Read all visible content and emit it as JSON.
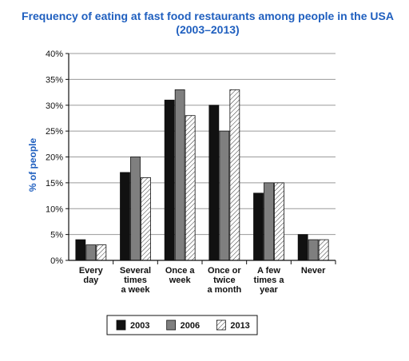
{
  "chart_data": {
    "type": "bar",
    "title": "Frequency of eating at fast food restaurants among people in the USA (2003–2013)",
    "ylabel": "% of people",
    "xlabel": "",
    "ylim": [
      0,
      40
    ],
    "yticks": [
      "0%",
      "5%",
      "10%",
      "15%",
      "20%",
      "25%",
      "30%",
      "35%",
      "40%"
    ],
    "categories": [
      [
        "Every",
        "day"
      ],
      [
        "Several",
        "times",
        "a week"
      ],
      [
        "Once a",
        "week"
      ],
      [
        "Once or",
        "twice",
        "a month"
      ],
      [
        "A few",
        "times a",
        "year"
      ],
      [
        "Never"
      ]
    ],
    "series": [
      {
        "name": "2003",
        "color": "#111111",
        "pattern": "solid",
        "values": [
          4,
          17,
          31,
          30,
          13,
          5
        ]
      },
      {
        "name": "2006",
        "color": "#7f7f7f",
        "pattern": "solid",
        "values": [
          3,
          20,
          33,
          25,
          15,
          4
        ]
      },
      {
        "name": "2013",
        "color": "#ffffff",
        "pattern": "hatch",
        "values": [
          3,
          16,
          28,
          33,
          15,
          4
        ]
      }
    ],
    "legend_position": "bottom",
    "grid": true
  }
}
